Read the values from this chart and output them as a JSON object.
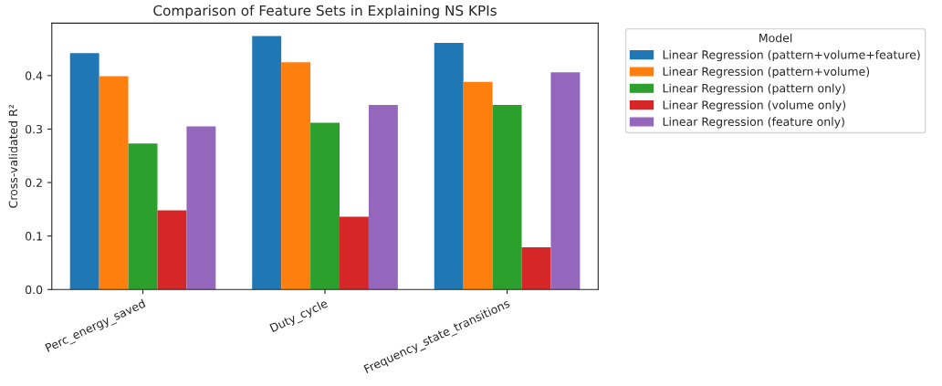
{
  "chart_data": {
    "type": "bar",
    "title": "Comparison of Feature Sets in Explaining NS KPIs",
    "ylabel": "Cross-validated R²",
    "legend_title": "Model",
    "categories": [
      "Perc_energy_saved",
      "Duty_cycle",
      "Frequency_state_transitions"
    ],
    "series": [
      {
        "name": "Linear Regression (pattern+volume+feature)",
        "color": "#1f77b4",
        "values": [
          0.442,
          0.474,
          0.461
        ]
      },
      {
        "name": "Linear Regression (pattern+volume)",
        "color": "#ff7f0e",
        "values": [
          0.399,
          0.425,
          0.388
        ]
      },
      {
        "name": "Linear Regression (pattern only)",
        "color": "#2ca02c",
        "values": [
          0.273,
          0.312,
          0.345
        ]
      },
      {
        "name": "Linear Regression (volume only)",
        "color": "#d62728",
        "values": [
          0.148,
          0.136,
          0.079
        ]
      },
      {
        "name": "Linear Regression (feature only)",
        "color": "#9467bd",
        "values": [
          0.305,
          0.345,
          0.406
        ]
      }
    ],
    "ylim": [
      0,
      0.498
    ],
    "yticks": [
      {
        "value": 0,
        "label": "0.0"
      },
      0.1,
      0.2,
      0.3,
      0.4
    ],
    "grid": false,
    "legend": "right"
  }
}
